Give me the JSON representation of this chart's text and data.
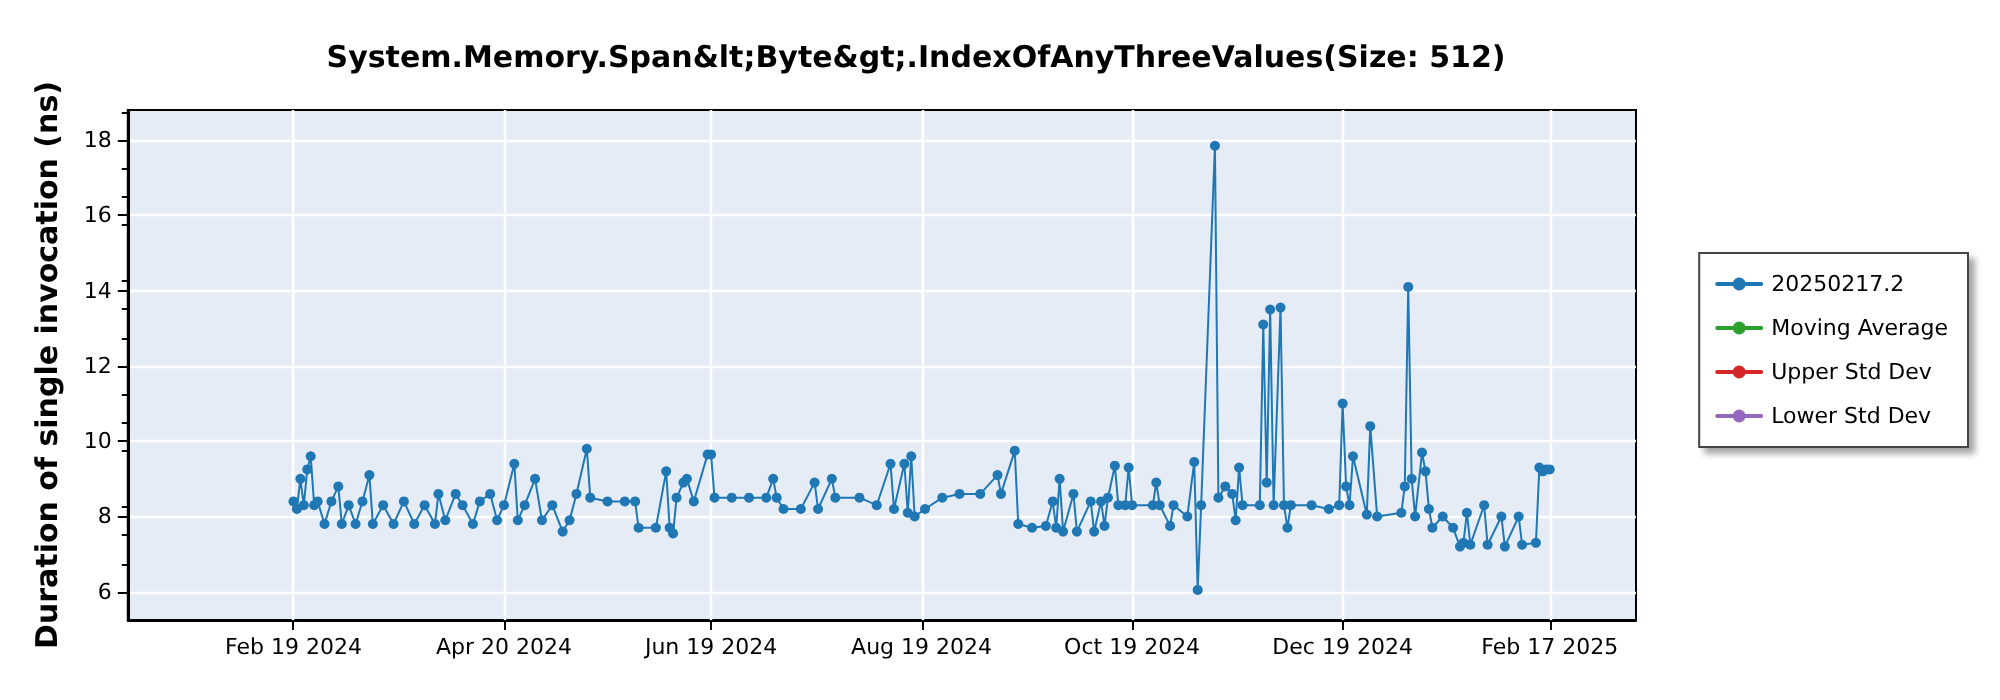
{
  "chart_data": {
    "type": "line",
    "title": "System.Memory.Span&lt;Byte&gt;.IndexOfAnyThreeValues(Size: 512)",
    "ylabel": "Duration of single invocation (ns)",
    "xlim": [
      "2024-01-02",
      "2025-03-14"
    ],
    "xticks": [
      {
        "value": "2024-02-19",
        "label": "Feb 19 2024"
      },
      {
        "value": "2024-04-20",
        "label": "Apr 20 2024"
      },
      {
        "value": "2024-06-19",
        "label": "Jun 19 2024"
      },
      {
        "value": "2024-08-19",
        "label": "Aug 19 2024"
      },
      {
        "value": "2024-10-19",
        "label": "Oct 19 2024"
      },
      {
        "value": "2024-12-19",
        "label": "Dec 19 2024"
      },
      {
        "value": "2025-02-17",
        "label": "Feb 17 2025"
      }
    ],
    "ylim": [
      5.25,
      18.8
    ],
    "yticks": [
      6,
      8,
      10,
      12,
      14,
      16,
      18
    ],
    "grid": true,
    "legend": "right",
    "marker": "circle",
    "line_style": "solid",
    "series": [
      {
        "name": "20250217.2",
        "color": "#1f77b4",
        "x": [
          "2024-02-19",
          "2024-02-20",
          "2024-02-21",
          "2024-02-22",
          "2024-02-23",
          "2024-02-24",
          "2024-02-25",
          "2024-02-26",
          "2024-02-28",
          "2024-03-01",
          "2024-03-03",
          "2024-03-04",
          "2024-03-06",
          "2024-03-08",
          "2024-03-10",
          "2024-03-12",
          "2024-03-13",
          "2024-03-16",
          "2024-03-19",
          "2024-03-22",
          "2024-03-25",
          "2024-03-28",
          "2024-03-31",
          "2024-04-01",
          "2024-04-03",
          "2024-04-06",
          "2024-04-08",
          "2024-04-11",
          "2024-04-13",
          "2024-04-16",
          "2024-04-18",
          "2024-04-20",
          "2024-04-23",
          "2024-04-24",
          "2024-04-26",
          "2024-04-29",
          "2024-05-01",
          "2024-05-04",
          "2024-05-07",
          "2024-05-09",
          "2024-05-11",
          "2024-05-14",
          "2024-05-15",
          "2024-05-20",
          "2024-05-25",
          "2024-05-28",
          "2024-05-29",
          "2024-06-03",
          "2024-06-06",
          "2024-06-07",
          "2024-06-08",
          "2024-06-09",
          "2024-06-11",
          "2024-06-12",
          "2024-06-14",
          "2024-06-18",
          "2024-06-19",
          "2024-06-20",
          "2024-06-25",
          "2024-06-30",
          "2024-07-05",
          "2024-07-07",
          "2024-07-08",
          "2024-07-10",
          "2024-07-15",
          "2024-07-19",
          "2024-07-20",
          "2024-07-24",
          "2024-07-25",
          "2024-08-01",
          "2024-08-06",
          "2024-08-10",
          "2024-08-11",
          "2024-08-14",
          "2024-08-15",
          "2024-08-16",
          "2024-08-17",
          "2024-08-20",
          "2024-08-25",
          "2024-08-30",
          "2024-09-05",
          "2024-09-10",
          "2024-09-11",
          "2024-09-15",
          "2024-09-16",
          "2024-09-20",
          "2024-09-24",
          "2024-09-26",
          "2024-09-27",
          "2024-09-28",
          "2024-09-29",
          "2024-10-02",
          "2024-10-03",
          "2024-10-07",
          "2024-10-08",
          "2024-10-10",
          "2024-10-11",
          "2024-10-12",
          "2024-10-14",
          "2024-10-15",
          "2024-10-17",
          "2024-10-18",
          "2024-10-19",
          "2024-10-25",
          "2024-10-26",
          "2024-10-27",
          "2024-10-30",
          "2024-10-31",
          "2024-11-04",
          "2024-11-06",
          "2024-11-07",
          "2024-11-08",
          "2024-11-12",
          "2024-11-13",
          "2024-11-15",
          "2024-11-17",
          "2024-11-18",
          "2024-11-19",
          "2024-11-20",
          "2024-11-25",
          "2024-11-26",
          "2024-11-27",
          "2024-11-28",
          "2024-11-29",
          "2024-12-01",
          "2024-12-02",
          "2024-12-03",
          "2024-12-04",
          "2024-12-10",
          "2024-12-15",
          "2024-12-18",
          "2024-12-19",
          "2024-12-20",
          "2024-12-21",
          "2024-12-22",
          "2024-12-26",
          "2024-12-27",
          "2024-12-29",
          "2025-01-05",
          "2025-01-06",
          "2025-01-07",
          "2025-01-08",
          "2025-01-09",
          "2025-01-11",
          "2025-01-12",
          "2025-01-13",
          "2025-01-14",
          "2025-01-17",
          "2025-01-20",
          "2025-01-22",
          "2025-01-23",
          "2025-01-24",
          "2025-01-25",
          "2025-01-29",
          "2025-01-30",
          "2025-02-03",
          "2025-02-04",
          "2025-02-08",
          "2025-02-09",
          "2025-02-13",
          "2025-02-14",
          "2025-02-15",
          "2025-02-16",
          "2025-02-17"
        ],
        "values": [
          8.4,
          8.2,
          9.0,
          8.3,
          9.25,
          9.6,
          8.3,
          8.4,
          7.8,
          8.4,
          8.8,
          7.8,
          8.3,
          7.8,
          8.4,
          9.1,
          7.8,
          8.3,
          7.8,
          8.4,
          7.8,
          8.3,
          7.8,
          8.6,
          7.9,
          8.6,
          8.3,
          7.8,
          8.4,
          8.6,
          7.9,
          8.3,
          9.4,
          7.9,
          8.3,
          9.0,
          7.9,
          8.3,
          7.6,
          7.9,
          8.6,
          9.8,
          8.5,
          8.4,
          8.4,
          8.4,
          7.7,
          7.7,
          9.2,
          7.7,
          7.55,
          8.5,
          8.9,
          9.0,
          8.4,
          9.65,
          9.65,
          8.5,
          8.5,
          8.5,
          8.5,
          9.0,
          8.5,
          8.2,
          8.2,
          8.9,
          8.2,
          9.0,
          8.5,
          8.5,
          8.3,
          9.4,
          8.2,
          9.4,
          8.1,
          9.6,
          8.0,
          8.2,
          8.5,
          8.6,
          8.6,
          9.1,
          8.6,
          9.75,
          7.8,
          7.7,
          7.75,
          8.4,
          7.7,
          9.0,
          7.6,
          8.6,
          7.6,
          8.4,
          7.6,
          8.4,
          7.75,
          8.5,
          9.35,
          8.3,
          8.3,
          9.3,
          8.3,
          8.3,
          8.9,
          8.3,
          7.75,
          8.3,
          8.0,
          9.45,
          6.05,
          8.3,
          17.85,
          8.5,
          8.8,
          8.6,
          7.9,
          9.3,
          8.3,
          8.3,
          13.1,
          8.9,
          13.5,
          8.3,
          13.55,
          8.3,
          7.7,
          8.3,
          8.3,
          8.2,
          8.3,
          11.0,
          8.8,
          8.3,
          9.6,
          8.05,
          10.4,
          8.0,
          8.1,
          8.8,
          14.1,
          9.0,
          8.0,
          9.7,
          9.2,
          8.2,
          7.7,
          8.0,
          7.7,
          7.2,
          7.3,
          8.1,
          7.25,
          8.3,
          7.25,
          8.0,
          7.2,
          8.0,
          7.25,
          7.3,
          9.3,
          9.2,
          9.25,
          9.25
        ]
      },
      {
        "name": "Moving Average",
        "color": "#2ca02c"
      },
      {
        "name": "Upper Std Dev",
        "color": "#d62728"
      },
      {
        "name": "Lower Std Dev",
        "color": "#9467bd"
      }
    ]
  }
}
